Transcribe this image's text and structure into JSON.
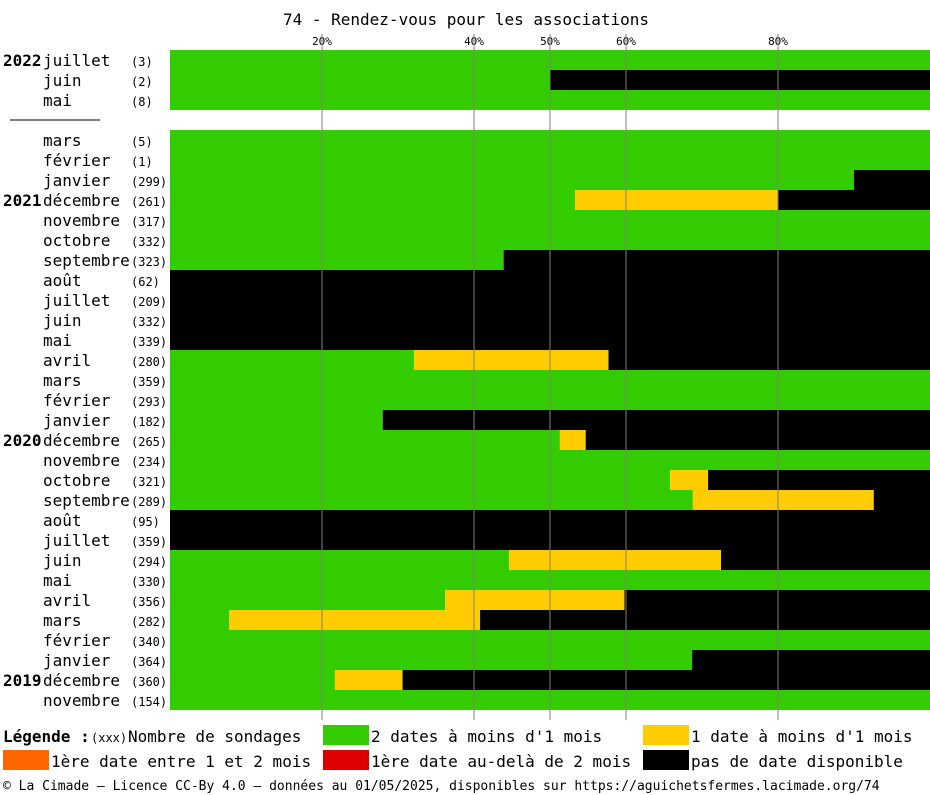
{
  "chart_data": {
    "type": "bar",
    "orientation": "horizontal-stacked",
    "title": "74 - Rendez-vous pour les associations",
    "x_ticks": [
      "20%",
      "40%",
      "50%",
      "60%",
      "80%"
    ],
    "x_tick_values": [
      20,
      40,
      50,
      60,
      80
    ],
    "xlim": [
      0,
      100
    ],
    "grid": true,
    "series": [
      {
        "key": "green",
        "label": "2 dates à moins d'1 mois",
        "color": "#33cc00"
      },
      {
        "key": "yellow",
        "label": "1 date à moins d'1 mois",
        "color": "#ffcc00"
      },
      {
        "key": "orange",
        "label": "1ère date entre 1 et 2 mois",
        "color": "#ff6600"
      },
      {
        "key": "red",
        "label": "1ère date au-delà de 2 mois",
        "color": "#dd0000"
      },
      {
        "key": "black",
        "label": "pas de date disponible",
        "color": "#000000"
      }
    ],
    "separator_after_row": 2,
    "rows": [
      {
        "year": "2022",
        "month": "juillet",
        "count": "(3)",
        "green": 100,
        "yellow": 0,
        "orange": 0,
        "red": 0,
        "black": 0
      },
      {
        "year": "",
        "month": "juin",
        "count": "(2)",
        "green": 50,
        "yellow": 0,
        "orange": 0,
        "red": 0,
        "black": 50
      },
      {
        "year": "",
        "month": "mai",
        "count": "(8)",
        "green": 100,
        "yellow": 0,
        "orange": 0,
        "red": 0,
        "black": 0
      },
      {
        "year": "",
        "month": "mars",
        "count": "(5)",
        "green": 100,
        "yellow": 0,
        "orange": 0,
        "red": 0,
        "black": 0
      },
      {
        "year": "",
        "month": "février",
        "count": "(1)",
        "green": 100,
        "yellow": 0,
        "orange": 0,
        "red": 0,
        "black": 0
      },
      {
        "year": "",
        "month": "janvier",
        "count": "(299)",
        "green": 90,
        "yellow": 0,
        "orange": 0,
        "red": 0,
        "black": 10
      },
      {
        "year": "2021",
        "month": "décembre",
        "count": "(261)",
        "green": 53.3,
        "yellow": 26.7,
        "orange": 0,
        "red": 0,
        "black": 20
      },
      {
        "year": "",
        "month": "novembre",
        "count": "(317)",
        "green": 100,
        "yellow": 0,
        "orange": 0,
        "red": 0,
        "black": 0
      },
      {
        "year": "",
        "month": "octobre",
        "count": "(332)",
        "green": 100,
        "yellow": 0,
        "orange": 0,
        "red": 0,
        "black": 0
      },
      {
        "year": "",
        "month": "septembre",
        "count": "(323)",
        "green": 43.9,
        "yellow": 0,
        "orange": 0,
        "red": 0,
        "black": 56.1
      },
      {
        "year": "",
        "month": "août",
        "count": "(62)",
        "green": 0,
        "yellow": 0,
        "orange": 0,
        "red": 0,
        "black": 100
      },
      {
        "year": "",
        "month": "juillet",
        "count": "(209)",
        "green": 0,
        "yellow": 0,
        "orange": 0,
        "red": 0,
        "black": 100
      },
      {
        "year": "",
        "month": "juin",
        "count": "(332)",
        "green": 0,
        "yellow": 0,
        "orange": 0,
        "red": 0,
        "black": 100
      },
      {
        "year": "",
        "month": "mai",
        "count": "(339)",
        "green": 0,
        "yellow": 0,
        "orange": 0,
        "red": 0,
        "black": 100
      },
      {
        "year": "",
        "month": "avril",
        "count": "(280)",
        "green": 32.1,
        "yellow": 25.6,
        "orange": 0,
        "red": 0,
        "black": 42.3
      },
      {
        "year": "",
        "month": "mars",
        "count": "(359)",
        "green": 100,
        "yellow": 0,
        "orange": 0,
        "red": 0,
        "black": 0
      },
      {
        "year": "",
        "month": "février",
        "count": "(293)",
        "green": 100,
        "yellow": 0,
        "orange": 0,
        "red": 0,
        "black": 0
      },
      {
        "year": "",
        "month": "janvier",
        "count": "(182)",
        "green": 28,
        "yellow": 0,
        "orange": 0,
        "red": 0,
        "black": 72
      },
      {
        "year": "2020",
        "month": "décembre",
        "count": "(265)",
        "green": 51.3,
        "yellow": 3.4,
        "orange": 0,
        "red": 0,
        "black": 45.3
      },
      {
        "year": "",
        "month": "novembre",
        "count": "(234)",
        "green": 100,
        "yellow": 0,
        "orange": 0,
        "red": 0,
        "black": 0
      },
      {
        "year": "",
        "month": "octobre",
        "count": "(321)",
        "green": 65.8,
        "yellow": 5,
        "orange": 0,
        "red": 0,
        "black": 29.2
      },
      {
        "year": "",
        "month": "septembre",
        "count": "(289)",
        "green": 68.8,
        "yellow": 23.8,
        "orange": 0,
        "red": 0,
        "black": 7.4
      },
      {
        "year": "",
        "month": "août",
        "count": "(95)",
        "green": 0,
        "yellow": 0,
        "orange": 0,
        "red": 0,
        "black": 100
      },
      {
        "year": "",
        "month": "juillet",
        "count": "(359)",
        "green": 0,
        "yellow": 0,
        "orange": 0,
        "red": 0,
        "black": 100
      },
      {
        "year": "",
        "month": "juin",
        "count": "(294)",
        "green": 44.6,
        "yellow": 27.9,
        "orange": 0,
        "red": 0,
        "black": 27.5
      },
      {
        "year": "",
        "month": "mai",
        "count": "(330)",
        "green": 100,
        "yellow": 0,
        "orange": 0,
        "red": 0,
        "black": 0
      },
      {
        "year": "",
        "month": "avril",
        "count": "(356)",
        "green": 36.2,
        "yellow": 23.6,
        "orange": 0,
        "red": 0,
        "black": 40.2
      },
      {
        "year": "",
        "month": "mars",
        "count": "(282)",
        "green": 7.8,
        "yellow": 33,
        "orange": 0,
        "red": 0,
        "black": 59.2
      },
      {
        "year": "",
        "month": "février",
        "count": "(340)",
        "green": 100,
        "yellow": 0,
        "orange": 0,
        "red": 0,
        "black": 0
      },
      {
        "year": "",
        "month": "janvier",
        "count": "(364)",
        "green": 68.7,
        "yellow": 0,
        "orange": 0,
        "red": 0,
        "black": 31.3
      },
      {
        "year": "2019",
        "month": "décembre",
        "count": "(360)",
        "green": 21.7,
        "yellow": 8.9,
        "orange": 0,
        "red": 0,
        "black": 69.4
      },
      {
        "year": "",
        "month": "novembre",
        "count": "(154)",
        "green": 100,
        "yellow": 0,
        "orange": 0,
        "red": 0,
        "black": 0
      }
    ]
  },
  "legend": {
    "title": "Légende :",
    "count_key": "(xxx)",
    "count_label": "Nombre de sondages"
  },
  "footer": "© La Cimade — Licence CC-By 4.0 — données au 01/05/2025, disponibles sur https://aguichetsfermes.lacimade.org/74"
}
